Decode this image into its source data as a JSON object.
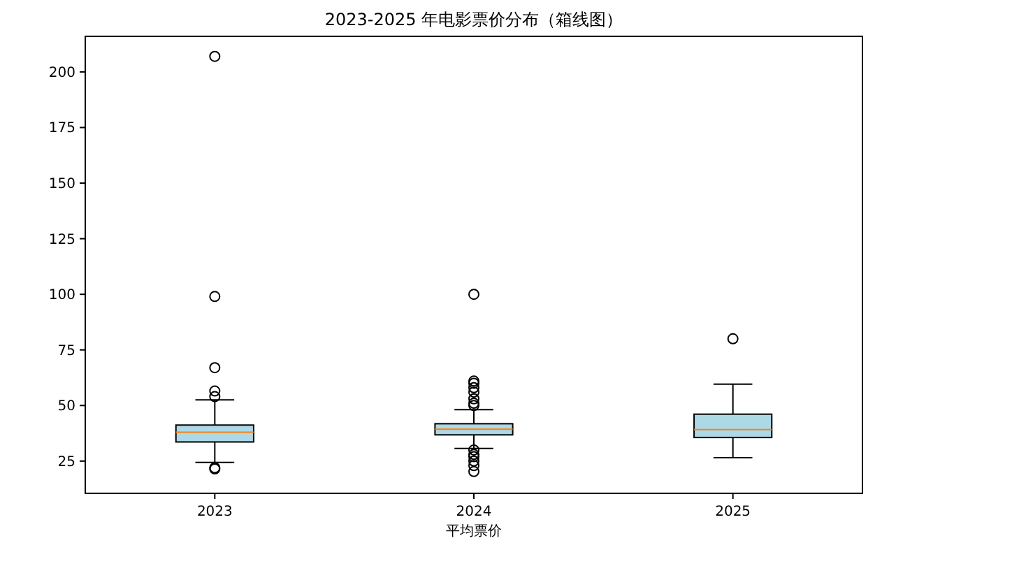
{
  "chart_data": {
    "type": "box",
    "title": "2023-2025 年电影票价分布（箱线图）",
    "xlabel": "平均票价",
    "categories": [
      "2023",
      "2024",
      "2025"
    ],
    "ylim": [
      10.5,
      216
    ],
    "yticks": [
      25,
      50,
      75,
      100,
      125,
      150,
      175,
      200
    ],
    "series": [
      {
        "color": "#add8e6",
        "boxes": [
          {
            "low": 24.4,
            "q1": 33.6,
            "median": 38,
            "q3": 41.2,
            "high": 52.5,
            "outliers": [
              207,
              99,
              67,
              56.5,
              54,
              22,
              21.5
            ]
          },
          {
            "low": 30.7,
            "q1": 36.8,
            "median": 39.3,
            "q3": 41.8,
            "high": 48.1,
            "outliers": [
              100,
              61,
              60,
              58,
              56,
              53,
              51,
              50,
              30,
              28,
              27,
              25,
              23,
              20.3
            ]
          },
          {
            "low": 26.5,
            "q1": 35.6,
            "median": 39.2,
            "q3": 46.1,
            "high": 59.6,
            "outliers": [
              80
            ]
          }
        ]
      }
    ],
    "grid": false
  }
}
